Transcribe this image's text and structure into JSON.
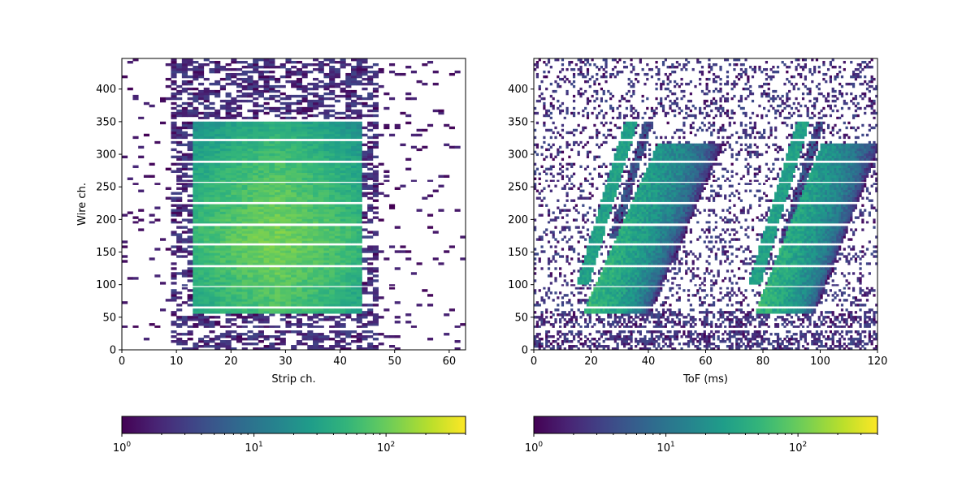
{
  "chart_data": [
    {
      "type": "heatmap",
      "title": "",
      "xlabel": "Strip ch.",
      "ylabel": "Wire ch.",
      "xlim": [
        0,
        63
      ],
      "ylim": [
        0,
        447
      ],
      "x_ticks": [
        0,
        10,
        20,
        30,
        40,
        50,
        60
      ],
      "y_ticks": [
        0,
        50,
        100,
        150,
        200,
        250,
        300,
        350,
        400
      ],
      "colormap": "viridis",
      "color_scale": "log",
      "color_range": [
        1,
        400
      ],
      "colorbar_ticks": [
        1,
        10,
        100
      ],
      "colorbar_tick_labels": [
        "10^0",
        "10^1",
        "10^2"
      ],
      "colorbar_placement": "bottom",
      "regions": [
        {
          "x": [
            13,
            43.5
          ],
          "y": [
            55,
            350
          ],
          "level": 120
        },
        {
          "x": [
            9,
            47
          ],
          "y": [
            0,
            447
          ],
          "level": 2.5
        }
      ],
      "empty_rows": [
        33,
        65,
        97,
        129,
        161,
        193,
        225,
        257,
        289,
        321,
        353
      ]
    },
    {
      "type": "heatmap",
      "title": "",
      "xlabel": "ToF (ms)",
      "ylabel": "",
      "xlim": [
        0,
        120
      ],
      "ylim": [
        0,
        447
      ],
      "x_ticks": [
        0,
        20,
        40,
        60,
        80,
        100,
        120
      ],
      "y_ticks": [
        0,
        50,
        100,
        150,
        200,
        250,
        300,
        350,
        400
      ],
      "colormap": "viridis",
      "color_scale": "log",
      "color_range": [
        1,
        400
      ],
      "colorbar_ticks": [
        1,
        10,
        100
      ],
      "colorbar_tick_labels": [
        "10^0",
        "10^1",
        "10^2"
      ],
      "colorbar_placement": "bottom",
      "bands": [
        {
          "x": [
            15,
            36
          ],
          "y": [
            100,
            350
          ],
          "level": 30
        },
        {
          "x": [
            17,
            65
          ],
          "y": [
            55,
            318
          ],
          "level": 60
        },
        {
          "x": [
            75,
            96
          ],
          "y": [
            100,
            350
          ],
          "level": 30
        },
        {
          "x": [
            77,
            120
          ],
          "y": [
            55,
            318
          ],
          "level": 60
        }
      ],
      "empty_rows": [
        33,
        65,
        97,
        129,
        161,
        193,
        225,
        257,
        289,
        321,
        353
      ]
    }
  ]
}
